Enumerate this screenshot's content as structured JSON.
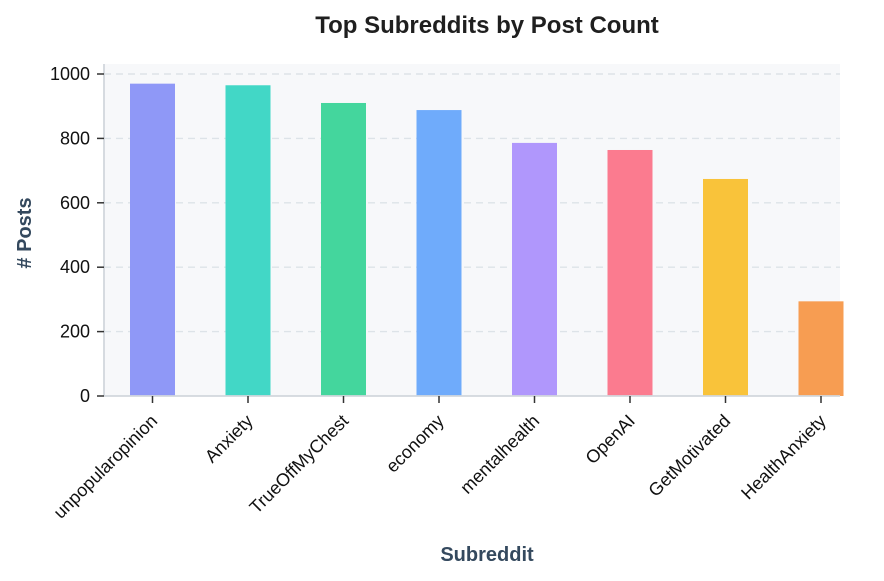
{
  "chart_data": {
    "type": "bar",
    "title": "Top Subreddits by Post Count",
    "xlabel": "Subreddit",
    "ylabel": "# Posts",
    "categories": [
      "unpopularopinion",
      "Anxiety",
      "TrueOffMyChest",
      "economy",
      "mentalhealth",
      "OpenAI",
      "GetMotivated",
      "HealthAnxiety"
    ],
    "values": [
      970,
      965,
      910,
      888,
      786,
      764,
      674,
      294
    ],
    "colors": [
      "#8f98f7",
      "#42d7c6",
      "#44d69d",
      "#6fabfb",
      "#b097fc",
      "#fb7b8f",
      "#f9c33a",
      "#f79d52"
    ],
    "yticks": [
      0,
      200,
      400,
      600,
      800,
      1000
    ],
    "ylim": [
      0,
      1000
    ],
    "grid": true
  }
}
